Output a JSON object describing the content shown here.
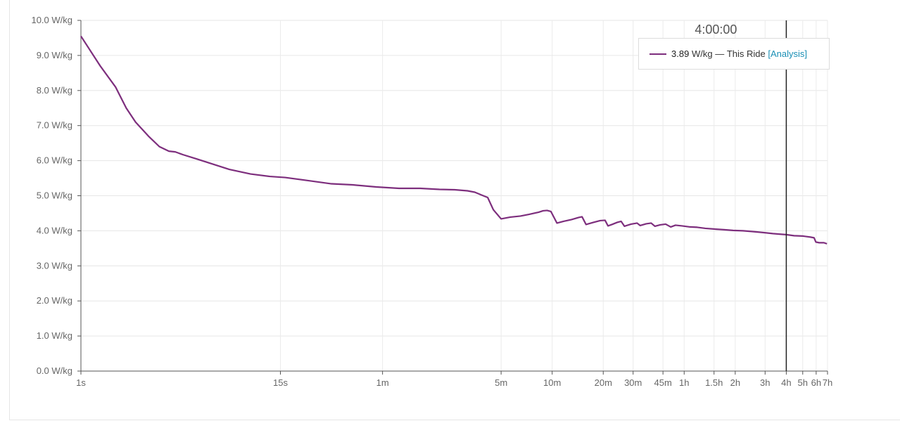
{
  "chart_data": {
    "type": "line",
    "x_scale": "log",
    "x_unit": "seconds",
    "x_ticks": [
      {
        "label": "1s",
        "sec": 1
      },
      {
        "label": "15s",
        "sec": 15
      },
      {
        "label": "1m",
        "sec": 60
      },
      {
        "label": "5m",
        "sec": 300
      },
      {
        "label": "10m",
        "sec": 600
      },
      {
        "label": "20m",
        "sec": 1200
      },
      {
        "label": "30m",
        "sec": 1800
      },
      {
        "label": "45m",
        "sec": 2700
      },
      {
        "label": "1h",
        "sec": 3600
      },
      {
        "label": "1.5h",
        "sec": 5400
      },
      {
        "label": "2h",
        "sec": 7200
      },
      {
        "label": "3h",
        "sec": 10800
      },
      {
        "label": "4h",
        "sec": 14400
      },
      {
        "label": "5h",
        "sec": 18000
      },
      {
        "label": "6h",
        "sec": 21600
      },
      {
        "label": "7h",
        "sec": 25200
      }
    ],
    "ylim": [
      0,
      10
    ],
    "y_ticks": [
      {
        "label": "0.0 W/kg",
        "value": 0
      },
      {
        "label": "1.0 W/kg",
        "value": 1
      },
      {
        "label": "2.0 W/kg",
        "value": 2
      },
      {
        "label": "3.0 W/kg",
        "value": 3
      },
      {
        "label": "4.0 W/kg",
        "value": 4
      },
      {
        "label": "5.0 W/kg",
        "value": 5
      },
      {
        "label": "6.0 W/kg",
        "value": 6
      },
      {
        "label": "7.0 W/kg",
        "value": 7
      },
      {
        "label": "8.0 W/kg",
        "value": 8
      },
      {
        "label": "9.0 W/kg",
        "value": 9
      },
      {
        "label": "10.0 W/kg",
        "value": 10
      }
    ],
    "grid": true,
    "series": [
      {
        "name": "This Ride",
        "color": "#7d2e7d",
        "points": [
          [
            1,
            9.55
          ],
          [
            1.3,
            8.7
          ],
          [
            1.6,
            8.1
          ],
          [
            1.85,
            7.5
          ],
          [
            2.1,
            7.1
          ],
          [
            2.5,
            6.7
          ],
          [
            2.9,
            6.4
          ],
          [
            3.3,
            6.27
          ],
          [
            3.6,
            6.25
          ],
          [
            4,
            6.17
          ],
          [
            4.8,
            6.05
          ],
          [
            6,
            5.9
          ],
          [
            7.5,
            5.75
          ],
          [
            10,
            5.62
          ],
          [
            13,
            5.55
          ],
          [
            16,
            5.52
          ],
          [
            22,
            5.43
          ],
          [
            30,
            5.34
          ],
          [
            40,
            5.31
          ],
          [
            55,
            5.25
          ],
          [
            75,
            5.21
          ],
          [
            100,
            5.21
          ],
          [
            130,
            5.18
          ],
          [
            160,
            5.17
          ],
          [
            190,
            5.14
          ],
          [
            210,
            5.1
          ],
          [
            230,
            5.02
          ],
          [
            250,
            4.95
          ],
          [
            270,
            4.6
          ],
          [
            300,
            4.34
          ],
          [
            340,
            4.39
          ],
          [
            390,
            4.42
          ],
          [
            440,
            4.47
          ],
          [
            500,
            4.53
          ],
          [
            530,
            4.57
          ],
          [
            560,
            4.58
          ],
          [
            590,
            4.55
          ],
          [
            640,
            4.22
          ],
          [
            700,
            4.27
          ],
          [
            780,
            4.32
          ],
          [
            860,
            4.38
          ],
          [
            900,
            4.4
          ],
          [
            950,
            4.18
          ],
          [
            1050,
            4.24
          ],
          [
            1150,
            4.29
          ],
          [
            1230,
            4.3
          ],
          [
            1280,
            4.14
          ],
          [
            1350,
            4.18
          ],
          [
            1450,
            4.24
          ],
          [
            1530,
            4.27
          ],
          [
            1600,
            4.13
          ],
          [
            1750,
            4.19
          ],
          [
            1900,
            4.22
          ],
          [
            1980,
            4.15
          ],
          [
            2150,
            4.2
          ],
          [
            2300,
            4.22
          ],
          [
            2420,
            4.13
          ],
          [
            2600,
            4.17
          ],
          [
            2800,
            4.19
          ],
          [
            3000,
            4.11
          ],
          [
            3200,
            4.16
          ],
          [
            3500,
            4.14
          ],
          [
            3900,
            4.11
          ],
          [
            4300,
            4.1
          ],
          [
            4800,
            4.07
          ],
          [
            5400,
            4.05
          ],
          [
            6200,
            4.03
          ],
          [
            7000,
            4.01
          ],
          [
            8000,
            4.0
          ],
          [
            9000,
            3.98
          ],
          [
            10000,
            3.96
          ],
          [
            11000,
            3.94
          ],
          [
            12000,
            3.92
          ],
          [
            13500,
            3.9
          ],
          [
            14400,
            3.89
          ],
          [
            16000,
            3.86
          ],
          [
            18000,
            3.85
          ],
          [
            20000,
            3.82
          ],
          [
            21000,
            3.8
          ],
          [
            21500,
            3.68
          ],
          [
            22500,
            3.66
          ],
          [
            24000,
            3.66
          ],
          [
            25000,
            3.63
          ]
        ]
      }
    ],
    "cursor": {
      "sec": 14400,
      "time_label": "4:00:00",
      "value_text": "3.89",
      "unit_text": "W/kg",
      "separator": "—",
      "series_label": "This Ride",
      "link_label": "Analysis"
    }
  }
}
